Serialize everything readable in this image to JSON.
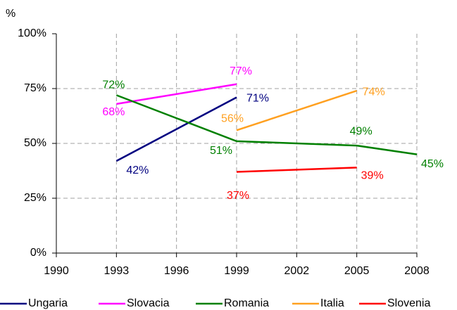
{
  "chart_data": {
    "type": "line",
    "y_label": "%",
    "x": [
      1993,
      1999,
      2005,
      2008
    ],
    "xlim": [
      1990,
      2008
    ],
    "xticks": [
      1990,
      1993,
      1996,
      1999,
      2002,
      2005,
      2008
    ],
    "ylim": [
      0,
      100
    ],
    "yticks": [
      {
        "value": 0,
        "label": "0%"
      },
      {
        "value": 25,
        "label": "25%"
      },
      {
        "value": 50,
        "label": "50%"
      },
      {
        "value": 75,
        "label": "75%"
      },
      {
        "value": 100,
        "label": "100%"
      }
    ],
    "grid": true,
    "legend": "bottom",
    "series": [
      {
        "name": "Ungaria",
        "color": "#000080",
        "values": [
          42,
          71,
          null,
          null
        ],
        "value_labels": [
          "42%",
          "71%",
          null,
          null
        ]
      },
      {
        "name": "Slovacia",
        "color": "#ff00ff",
        "values": [
          68,
          77,
          null,
          null
        ],
        "value_labels": [
          "68%",
          "77%",
          null,
          null
        ]
      },
      {
        "name": "Romania",
        "color": "#008000",
        "values": [
          72,
          51,
          49,
          45
        ],
        "value_labels": [
          "72%",
          "51%",
          "49%",
          "45%"
        ]
      },
      {
        "name": "Italia",
        "color": "#ffa020",
        "values": [
          null,
          56,
          74,
          null
        ],
        "value_labels": [
          null,
          "56%",
          "74%",
          null
        ]
      },
      {
        "name": "Slovenia",
        "color": "#ff0000",
        "values": [
          null,
          37,
          39,
          null
        ],
        "value_labels": [
          null,
          "37%",
          "39%",
          null
        ]
      }
    ]
  }
}
